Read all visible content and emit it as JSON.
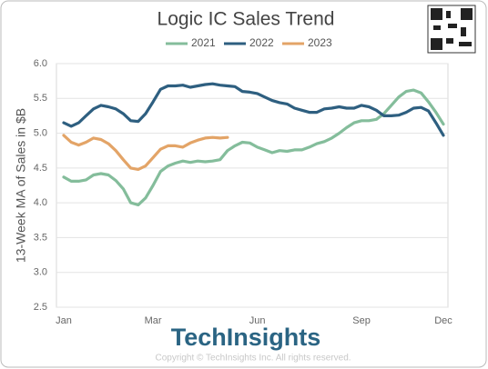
{
  "chart_data": {
    "type": "line",
    "title": "Logic IC Sales Trend",
    "y_label": "13-Week MA of Sales in $B",
    "brand": "TechInsights",
    "copyright": "Copyright © TechInsights Inc.  All rights reserved.",
    "categories": [
      "Jan",
      null,
      null,
      null,
      null,
      null,
      null,
      null,
      null,
      null,
      null,
      null,
      "Mar",
      null,
      null,
      null,
      null,
      null,
      null,
      null,
      null,
      null,
      null,
      null,
      null,
      null,
      "Jun",
      null,
      null,
      null,
      null,
      null,
      null,
      null,
      null,
      null,
      null,
      null,
      null,
      null,
      "Sep",
      null,
      null,
      null,
      null,
      null,
      null,
      null,
      null,
      null,
      null,
      "Dec"
    ],
    "series": [
      {
        "name": "2021",
        "color": "#84bd9b",
        "values": [
          4.37,
          4.31,
          4.31,
          4.33,
          4.4,
          4.42,
          4.4,
          4.32,
          4.2,
          4.0,
          3.97,
          4.07,
          4.25,
          4.45,
          4.53,
          4.57,
          4.6,
          4.58,
          4.6,
          4.59,
          4.6,
          4.62,
          4.75,
          4.82,
          4.87,
          4.86,
          4.8,
          4.76,
          4.72,
          4.75,
          4.74,
          4.76,
          4.76,
          4.8,
          4.85,
          4.88,
          4.93,
          5.0,
          5.08,
          5.15,
          5.18,
          5.18,
          5.2,
          5.28,
          5.4,
          5.52,
          5.6,
          5.62,
          5.58,
          5.45,
          5.3,
          5.13
        ]
      },
      {
        "name": "2022",
        "color": "#2e5f80",
        "values": [
          5.15,
          5.1,
          5.15,
          5.25,
          5.35,
          5.4,
          5.38,
          5.35,
          5.28,
          5.18,
          5.17,
          5.28,
          5.45,
          5.63,
          5.68,
          5.68,
          5.69,
          5.66,
          5.68,
          5.7,
          5.71,
          5.69,
          5.68,
          5.67,
          5.6,
          5.59,
          5.57,
          5.52,
          5.47,
          5.44,
          5.42,
          5.36,
          5.33,
          5.3,
          5.3,
          5.35,
          5.36,
          5.38,
          5.36,
          5.36,
          5.4,
          5.38,
          5.33,
          5.25,
          5.25,
          5.26,
          5.3,
          5.36,
          5.37,
          5.32,
          5.15,
          4.97
        ]
      },
      {
        "name": "2023",
        "color": "#e3a467",
        "values": [
          4.97,
          4.87,
          4.83,
          4.87,
          4.93,
          4.91,
          4.85,
          4.75,
          4.62,
          4.5,
          4.48,
          4.53,
          4.65,
          4.77,
          4.82,
          4.82,
          4.8,
          4.86,
          4.9,
          4.93,
          4.94,
          4.93,
          4.94,
          null,
          null,
          null,
          null,
          null,
          null,
          null,
          null,
          null,
          null,
          null,
          null,
          null,
          null,
          null,
          null,
          null,
          null,
          null,
          null,
          null,
          null,
          null,
          null,
          null,
          null,
          null,
          null,
          null
        ]
      }
    ],
    "ylim": [
      2.5,
      6.0
    ],
    "yticks": [
      2.5,
      {
        "value": 3,
        "label": "3.0"
      },
      3.5,
      {
        "value": 4,
        "label": "4.0"
      },
      4.5,
      {
        "value": 5,
        "label": "5.0"
      },
      5.5,
      {
        "value": 6,
        "label": "6.0"
      }
    ],
    "grid": true
  }
}
